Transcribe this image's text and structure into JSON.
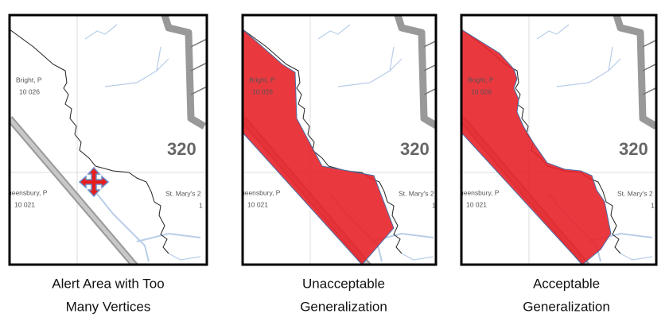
{
  "panels": [
    {
      "labels": {
        "township_1": "Bright, P",
        "code_1": "10 026",
        "number": "320",
        "township_2": "ueensbury, P",
        "code_2": "10 021",
        "township_3": "St. Mary's 2",
        "code_3": "1"
      },
      "caption": [
        "Alert Area with Too",
        "Many Vertices"
      ]
    },
    {
      "labels": {
        "township_1": "Bright, P",
        "code_1": "10 026",
        "number": "320",
        "township_2": "ueensbury, P",
        "code_2": "10 021",
        "township_3": "St. Mary's 2",
        "code_3": "1"
      },
      "caption": [
        "Unacceptable",
        "Generalization"
      ]
    },
    {
      "labels": {
        "township_1": "Bright, P",
        "code_1": "10 026",
        "number": "320",
        "township_2": "ueensbury, P",
        "code_2": "10 021",
        "township_3": "St. Mary's 2",
        "code_3": "1"
      },
      "caption": [
        "Acceptable",
        "Generalization"
      ]
    }
  ]
}
